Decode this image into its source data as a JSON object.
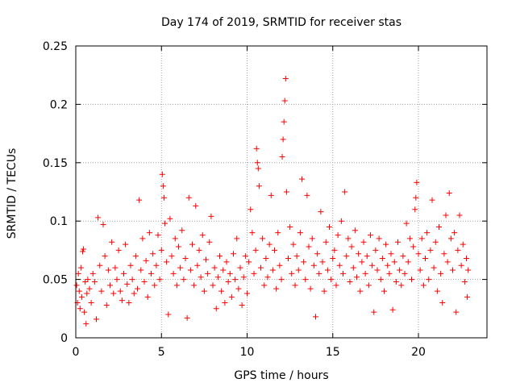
{
  "chart_data": {
    "type": "scatter",
    "title": "Day 174 of 2019, SRMTID for receiver stas",
    "xlabel": "GPS time / hours",
    "ylabel": "SRMTID / TECUs",
    "xlim": [
      0,
      24
    ],
    "ylim": [
      0,
      0.25
    ],
    "grid": true,
    "marker": "+",
    "colors": {
      "points": "#ff0000",
      "axes": "#000000",
      "grid": "#a0a0a0"
    },
    "x_ticks": [
      {
        "value": 0,
        "label": "0"
      },
      {
        "value": 5,
        "label": "5"
      },
      {
        "value": 10,
        "label": "10"
      },
      {
        "value": 15,
        "label": "15"
      },
      {
        "value": 20,
        "label": "20"
      }
    ],
    "y_ticks": [
      {
        "value": 0,
        "label": "0"
      },
      {
        "value": 0.05,
        "label": "0.05"
      },
      {
        "value": 0.1,
        "label": "0.1"
      },
      {
        "value": 0.15,
        "label": "0.15"
      },
      {
        "value": 0.2,
        "label": "0.2"
      },
      {
        "value": 0.25,
        "label": "0.25"
      }
    ],
    "series": [
      {
        "name": "SRMTID",
        "points": [
          [
            0.05,
            0.045
          ],
          [
            0.1,
            0.03
          ],
          [
            0.15,
            0.055
          ],
          [
            0.2,
            0.04
          ],
          [
            0.25,
            0.025
          ],
          [
            0.3,
            0.06
          ],
          [
            0.35,
            0.035
          ],
          [
            0.4,
            0.074
          ],
          [
            0.45,
            0.076
          ],
          [
            0.5,
            0.022
          ],
          [
            0.55,
            0.048
          ],
          [
            0.6,
            0.012
          ],
          [
            0.65,
            0.038
          ],
          [
            0.7,
            0.05
          ],
          [
            0.8,
            0.042
          ],
          [
            0.9,
            0.03
          ],
          [
            1.0,
            0.055
          ],
          [
            1.1,
            0.048
          ],
          [
            1.2,
            0.016
          ],
          [
            1.3,
            0.103
          ],
          [
            1.4,
            0.062
          ],
          [
            1.5,
            0.04
          ],
          [
            1.6,
            0.097
          ],
          [
            1.7,
            0.07
          ],
          [
            1.8,
            0.028
          ],
          [
            1.9,
            0.058
          ],
          [
            2.0,
            0.045
          ],
          [
            2.1,
            0.082
          ],
          [
            2.2,
            0.038
          ],
          [
            2.3,
            0.06
          ],
          [
            2.4,
            0.05
          ],
          [
            2.5,
            0.075
          ],
          [
            2.6,
            0.04
          ],
          [
            2.7,
            0.032
          ],
          [
            2.8,
            0.055
          ],
          [
            2.9,
            0.08
          ],
          [
            3.0,
            0.046
          ],
          [
            3.1,
            0.03
          ],
          [
            3.2,
            0.062
          ],
          [
            3.3,
            0.05
          ],
          [
            3.4,
            0.038
          ],
          [
            3.5,
            0.07
          ],
          [
            3.6,
            0.042
          ],
          [
            3.7,
            0.118
          ],
          [
            3.8,
            0.058
          ],
          [
            3.9,
            0.085
          ],
          [
            4.0,
            0.048
          ],
          [
            4.1,
            0.066
          ],
          [
            4.2,
            0.035
          ],
          [
            4.3,
            0.09
          ],
          [
            4.4,
            0.055
          ],
          [
            4.5,
            0.072
          ],
          [
            4.6,
            0.045
          ],
          [
            4.7,
            0.062
          ],
          [
            4.8,
            0.088
          ],
          [
            4.9,
            0.05
          ],
          [
            5.0,
            0.075
          ],
          [
            5.05,
            0.14
          ],
          [
            5.1,
            0.13
          ],
          [
            5.15,
            0.12
          ],
          [
            5.2,
            0.098
          ],
          [
            5.3,
            0.065
          ],
          [
            5.4,
            0.02
          ],
          [
            5.5,
            0.102
          ],
          [
            5.6,
            0.07
          ],
          [
            5.7,
            0.055
          ],
          [
            5.8,
            0.085
          ],
          [
            5.9,
            0.045
          ],
          [
            6.0,
            0.078
          ],
          [
            6.1,
            0.06
          ],
          [
            6.2,
            0.092
          ],
          [
            6.3,
            0.05
          ],
          [
            6.4,
            0.068
          ],
          [
            6.5,
            0.017
          ],
          [
            6.6,
            0.12
          ],
          [
            6.7,
            0.058
          ],
          [
            6.8,
            0.08
          ],
          [
            6.9,
            0.045
          ],
          [
            7.0,
            0.113
          ],
          [
            7.1,
            0.062
          ],
          [
            7.2,
            0.075
          ],
          [
            7.3,
            0.052
          ],
          [
            7.4,
            0.088
          ],
          [
            7.5,
            0.04
          ],
          [
            7.6,
            0.067
          ],
          [
            7.7,
            0.055
          ],
          [
            7.8,
            0.082
          ],
          [
            7.9,
            0.104
          ],
          [
            8.0,
            0.045
          ],
          [
            8.1,
            0.06
          ],
          [
            8.2,
            0.025
          ],
          [
            8.3,
            0.052
          ],
          [
            8.4,
            0.07
          ],
          [
            8.5,
            0.04
          ],
          [
            8.6,
            0.058
          ],
          [
            8.7,
            0.03
          ],
          [
            8.8,
            0.065
          ],
          [
            8.9,
            0.048
          ],
          [
            9.0,
            0.055
          ],
          [
            9.1,
            0.035
          ],
          [
            9.2,
            0.072
          ],
          [
            9.3,
            0.05
          ],
          [
            9.4,
            0.085
          ],
          [
            9.5,
            0.042
          ],
          [
            9.6,
            0.06
          ],
          [
            9.7,
            0.028
          ],
          [
            9.8,
            0.052
          ],
          [
            9.9,
            0.07
          ],
          [
            10.0,
            0.038
          ],
          [
            10.1,
            0.065
          ],
          [
            10.2,
            0.11
          ],
          [
            10.3,
            0.09
          ],
          [
            10.4,
            0.055
          ],
          [
            10.5,
            0.075
          ],
          [
            10.55,
            0.162
          ],
          [
            10.6,
            0.15
          ],
          [
            10.65,
            0.145
          ],
          [
            10.7,
            0.13
          ],
          [
            10.8,
            0.06
          ],
          [
            10.9,
            0.085
          ],
          [
            11.0,
            0.045
          ],
          [
            11.1,
            0.068
          ],
          [
            11.2,
            0.052
          ],
          [
            11.3,
            0.08
          ],
          [
            11.4,
            0.122
          ],
          [
            11.5,
            0.058
          ],
          [
            11.6,
            0.075
          ],
          [
            11.7,
            0.042
          ],
          [
            11.8,
            0.09
          ],
          [
            11.9,
            0.062
          ],
          [
            12.0,
            0.05
          ],
          [
            12.05,
            0.155
          ],
          [
            12.1,
            0.17
          ],
          [
            12.15,
            0.185
          ],
          [
            12.2,
            0.203
          ],
          [
            12.25,
            0.222
          ],
          [
            12.3,
            0.125
          ],
          [
            12.4,
            0.068
          ],
          [
            12.5,
            0.095
          ],
          [
            12.6,
            0.055
          ],
          [
            12.7,
            0.08
          ],
          [
            12.8,
            0.045
          ],
          [
            12.9,
            0.07
          ],
          [
            13.0,
            0.058
          ],
          [
            13.1,
            0.09
          ],
          [
            13.2,
            0.136
          ],
          [
            13.3,
            0.065
          ],
          [
            13.4,
            0.05
          ],
          [
            13.5,
            0.122
          ],
          [
            13.6,
            0.078
          ],
          [
            13.7,
            0.042
          ],
          [
            13.8,
            0.085
          ],
          [
            13.9,
            0.062
          ],
          [
            14.0,
            0.018
          ],
          [
            14.1,
            0.072
          ],
          [
            14.2,
            0.055
          ],
          [
            14.3,
            0.108
          ],
          [
            14.4,
            0.065
          ],
          [
            14.5,
            0.04
          ],
          [
            14.6,
            0.082
          ],
          [
            14.7,
            0.058
          ],
          [
            14.8,
            0.095
          ],
          [
            14.9,
            0.05
          ],
          [
            15.0,
            0.068
          ],
          [
            15.1,
            0.075
          ],
          [
            15.2,
            0.045
          ],
          [
            15.3,
            0.088
          ],
          [
            15.4,
            0.062
          ],
          [
            15.5,
            0.1
          ],
          [
            15.6,
            0.055
          ],
          [
            15.7,
            0.125
          ],
          [
            15.8,
            0.07
          ],
          [
            15.9,
            0.085
          ],
          [
            16.0,
            0.048
          ],
          [
            16.1,
            0.078
          ],
          [
            16.2,
            0.06
          ],
          [
            16.3,
            0.092
          ],
          [
            16.4,
            0.052
          ],
          [
            16.5,
            0.072
          ],
          [
            16.6,
            0.04
          ],
          [
            16.7,
            0.065
          ],
          [
            16.8,
            0.082
          ],
          [
            16.9,
            0.055
          ],
          [
            17.0,
            0.07
          ],
          [
            17.1,
            0.045
          ],
          [
            17.2,
            0.088
          ],
          [
            17.3,
            0.062
          ],
          [
            17.4,
            0.022
          ],
          [
            17.5,
            0.075
          ],
          [
            17.6,
            0.058
          ],
          [
            17.7,
            0.085
          ],
          [
            17.8,
            0.05
          ],
          [
            17.9,
            0.068
          ],
          [
            18.0,
            0.04
          ],
          [
            18.1,
            0.08
          ],
          [
            18.2,
            0.062
          ],
          [
            18.3,
            0.055
          ],
          [
            18.4,
            0.072
          ],
          [
            18.5,
            0.024
          ],
          [
            18.6,
            0.065
          ],
          [
            18.7,
            0.048
          ],
          [
            18.8,
            0.082
          ],
          [
            18.9,
            0.058
          ],
          [
            19.0,
            0.045
          ],
          [
            19.1,
            0.07
          ],
          [
            19.2,
            0.055
          ],
          [
            19.3,
            0.098
          ],
          [
            19.4,
            0.065
          ],
          [
            19.5,
            0.085
          ],
          [
            19.6,
            0.05
          ],
          [
            19.7,
            0.078
          ],
          [
            19.8,
            0.11
          ],
          [
            19.85,
            0.12
          ],
          [
            19.9,
            0.133
          ],
          [
            20.0,
            0.072
          ],
          [
            20.1,
            0.058
          ],
          [
            20.2,
            0.085
          ],
          [
            20.3,
            0.045
          ],
          [
            20.4,
            0.068
          ],
          [
            20.5,
            0.09
          ],
          [
            20.6,
            0.05
          ],
          [
            20.7,
            0.075
          ],
          [
            20.8,
            0.118
          ],
          [
            20.9,
            0.06
          ],
          [
            21.0,
            0.082
          ],
          [
            21.1,
            0.04
          ],
          [
            21.2,
            0.095
          ],
          [
            21.3,
            0.055
          ],
          [
            21.4,
            0.03
          ],
          [
            21.5,
            0.072
          ],
          [
            21.6,
            0.105
          ],
          [
            21.7,
            0.065
          ],
          [
            21.8,
            0.124
          ],
          [
            21.9,
            0.085
          ],
          [
            22.0,
            0.058
          ],
          [
            22.1,
            0.09
          ],
          [
            22.2,
            0.022
          ],
          [
            22.3,
            0.075
          ],
          [
            22.4,
            0.105
          ],
          [
            22.5,
            0.062
          ],
          [
            22.6,
            0.08
          ],
          [
            22.7,
            0.048
          ],
          [
            22.8,
            0.068
          ],
          [
            22.85,
            0.035
          ],
          [
            22.9,
            0.058
          ]
        ]
      }
    ]
  }
}
